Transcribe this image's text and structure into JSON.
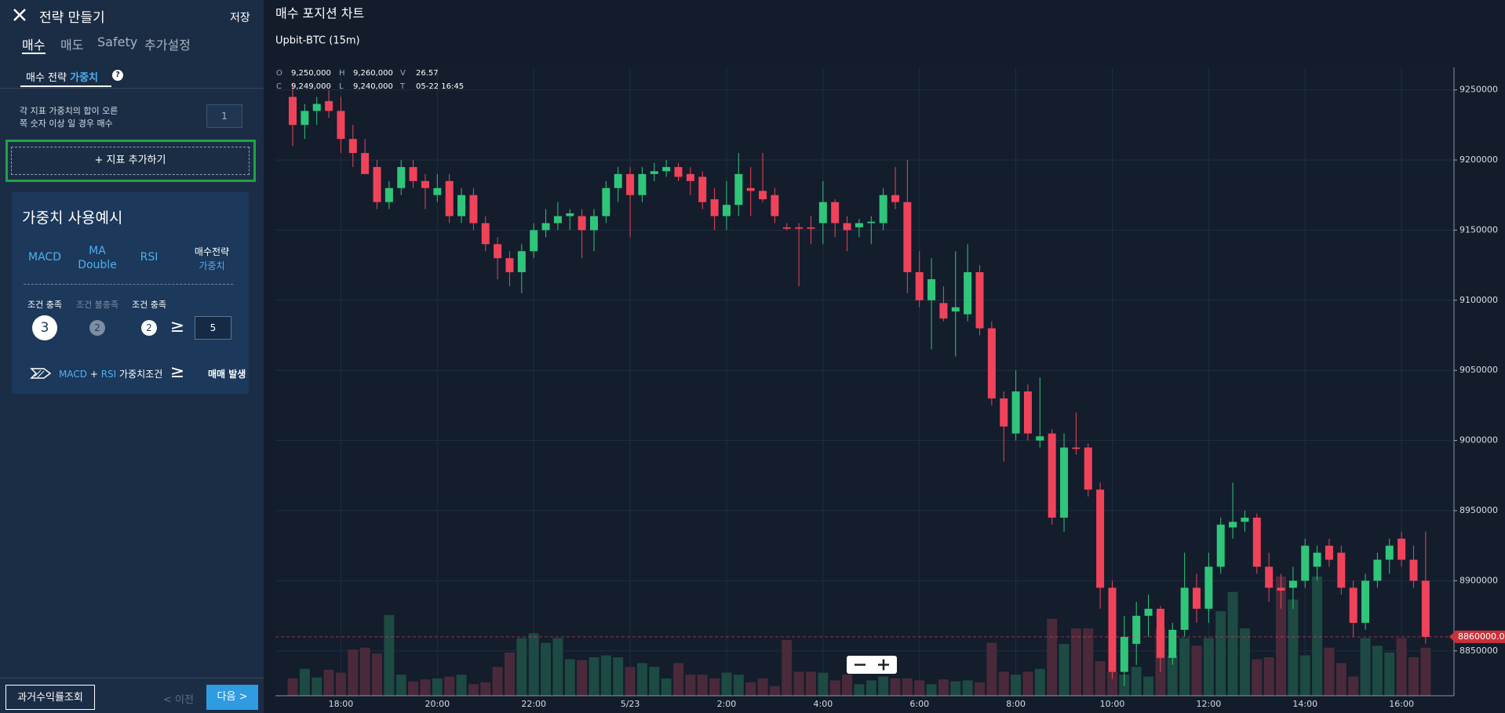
{
  "sidebar": {
    "title": "전략 만들기",
    "save": "저장",
    "tabs": [
      "매수",
      "매도",
      "Safety",
      "추가설정"
    ],
    "subtab": {
      "label": "매수 전략",
      "highlight": "가중치",
      "help": "?"
    },
    "description": [
      "각 지표 가중치의 합이 오른",
      "쪽 숫자 이상 일 경우 매수"
    ],
    "threshold": 1,
    "add_button": "+ 지표 추가하기",
    "example": {
      "title": "가중치 사용예시",
      "columns": [
        [
          "MACD"
        ],
        [
          "MA",
          "Double"
        ],
        [
          "RSI"
        ],
        [
          "매수전략",
          "가중치"
        ]
      ],
      "conditions": [
        {
          "label": "조건 충족",
          "weight": 3
        },
        {
          "label": "조건 불충족",
          "weight": 2
        },
        {
          "label": "조건 충족",
          "weight": 2
        }
      ],
      "operator": "≥",
      "target": 5,
      "result": [
        "MACD",
        "+",
        "RSI",
        "가중치조건",
        "≥",
        "매매 발생"
      ]
    },
    "footer": {
      "history": "과거수익률조회",
      "prev": "< 이전",
      "next": "다음 >"
    }
  },
  "chart_data": {
    "type": "candlestick",
    "title": "매수 포지션 차트",
    "subtitle": "Upbit-BTC (15m)",
    "legend": [
      {
        "key": "O",
        "value": "9,250,000"
      },
      {
        "key": "H",
        "value": "9,260,000"
      },
      {
        "key": "V",
        "value": "26.57"
      },
      {
        "key": "C",
        "value": "9,249,000"
      },
      {
        "key": "L",
        "value": "9,240,000"
      },
      {
        "key": "T",
        "value": "05-22 16:45"
      }
    ],
    "categories": [
      null,
      null,
      null,
      null,
      "18:00",
      null,
      null,
      null,
      null,
      null,
      null,
      null,
      "20:00",
      null,
      null,
      null,
      null,
      null,
      null,
      null,
      "22:00",
      null,
      null,
      null,
      null,
      null,
      null,
      null,
      "5/23",
      null,
      null,
      null,
      null,
      null,
      null,
      null,
      "2:00",
      null,
      null,
      null,
      null,
      null,
      null,
      null,
      "4:00",
      null,
      null,
      null,
      null,
      null,
      null,
      null,
      "6:00",
      null,
      null,
      null,
      null,
      null,
      null,
      null,
      "8:00",
      null,
      null,
      null,
      null,
      null,
      null,
      null,
      "10:00",
      null,
      null,
      null,
      null,
      null,
      null,
      null,
      "12:00",
      null,
      null,
      null,
      null,
      null,
      null,
      null,
      "14:00",
      null,
      null,
      null,
      null,
      null,
      null,
      null,
      "16:00",
      null,
      null
    ],
    "open": [
      9245000,
      9225000,
      9235000,
      9242000,
      9235000,
      9215000,
      9205000,
      9195000,
      9170000,
      9180000,
      9195000,
      9185000,
      9175000,
      9185000,
      9160000,
      9175000,
      9155000,
      9140000,
      9130000,
      9120000,
      9135000,
      9150000,
      9155000,
      9160000,
      9160000,
      9150000,
      9160000,
      9180000,
      9190000,
      9175000,
      9190000,
      9192000,
      9195000,
      9190000,
      9188000,
      9172000,
      9160000,
      9168000,
      9180000,
      9178000,
      9175000,
      9152000,
      9152000,
      9152000,
      9155000,
      9170000,
      9155000,
      9152000,
      9155000,
      9155000,
      9175000,
      9170000,
      9120000,
      9100000,
      9098000,
      9092000,
      9090000,
      9120000,
      9080000,
      9030000,
      9005000,
      9035000,
      9000000,
      9005000,
      8945000,
      8995000,
      8995000,
      8965000,
      8895000,
      8835000,
      8855000,
      8875000,
      8880000,
      8845000,
      8865000,
      8895000,
      8880000,
      8910000,
      8938000,
      8942000,
      8945000,
      8910000,
      8895000,
      8895000,
      8900000,
      8910000,
      8925000,
      8920000,
      8895000,
      8870000,
      8900000,
      8915000,
      8930000,
      8915000,
      8900000
    ],
    "high": [
      9255000,
      9240000,
      9245000,
      9250000,
      9245000,
      9225000,
      9215000,
      9200000,
      9185000,
      9200000,
      9200000,
      9190000,
      9190000,
      9190000,
      9180000,
      9180000,
      9160000,
      9145000,
      9135000,
      9140000,
      9155000,
      9165000,
      9170000,
      9165000,
      9165000,
      9165000,
      9185000,
      9195000,
      9195000,
      9195000,
      9198000,
      9200000,
      9198000,
      9195000,
      9192000,
      9180000,
      9185000,
      9205000,
      9195000,
      9205000,
      9180000,
      9155000,
      9155000,
      9160000,
      9185000,
      9172000,
      9160000,
      9158000,
      9160000,
      9180000,
      9195000,
      9200000,
      9135000,
      9130000,
      9110000,
      9135000,
      9140000,
      9125000,
      9085000,
      9035000,
      9050000,
      9040000,
      9045000,
      9008000,
      9005000,
      9020000,
      8998000,
      8970000,
      8900000,
      8875000,
      8885000,
      8890000,
      8882000,
      8870000,
      8920000,
      8905000,
      8920000,
      8945000,
      8970000,
      8950000,
      8948000,
      8920000,
      8905000,
      8910000,
      8930000,
      8925000,
      8930000,
      8925000,
      8900000,
      8905000,
      8920000,
      8930000,
      8935000,
      8925000,
      8935000
    ],
    "low": [
      9210000,
      9215000,
      9225000,
      9230000,
      9205000,
      9195000,
      9190000,
      9165000,
      9165000,
      9175000,
      9180000,
      9165000,
      9170000,
      9155000,
      9155000,
      9150000,
      9135000,
      9115000,
      9110000,
      9105000,
      9130000,
      9145000,
      9150000,
      9150000,
      9130000,
      9135000,
      9155000,
      9170000,
      9145000,
      9170000,
      9185000,
      9188000,
      9185000,
      9175000,
      9165000,
      9150000,
      9150000,
      9160000,
      9160000,
      9170000,
      9155000,
      9150000,
      9110000,
      9140000,
      9140000,
      9145000,
      9135000,
      9145000,
      9140000,
      9150000,
      9165000,
      9105000,
      9095000,
      9065000,
      9085000,
      9060000,
      9085000,
      9075000,
      9025000,
      8985000,
      9000000,
      9000000,
      8995000,
      8940000,
      8935000,
      8990000,
      8960000,
      8880000,
      8830000,
      8825000,
      8840000,
      8860000,
      8835000,
      8840000,
      8860000,
      8870000,
      8870000,
      8905000,
      8930000,
      8935000,
      8905000,
      8885000,
      8880000,
      8880000,
      8895000,
      8900000,
      8910000,
      8890000,
      8860000,
      8865000,
      8895000,
      8905000,
      8910000,
      8895000,
      8855000
    ],
    "close": [
      9225000,
      9235000,
      9240000,
      9235000,
      9215000,
      9205000,
      9190000,
      9170000,
      9180000,
      9195000,
      9185000,
      9180000,
      9180000,
      9160000,
      9175000,
      9155000,
      9140000,
      9130000,
      9120000,
      9135000,
      9150000,
      9155000,
      9160000,
      9162000,
      9150000,
      9160000,
      9180000,
      9190000,
      9175000,
      9190000,
      9192000,
      9195000,
      9188000,
      9185000,
      9170000,
      9160000,
      9168000,
      9190000,
      9178000,
      9172000,
      9160000,
      9151000,
      9151000,
      9151000,
      9170000,
      9155000,
      9150000,
      9155000,
      9156000,
      9175000,
      9170000,
      9120000,
      9100000,
      9115000,
      9087000,
      9095000,
      9120000,
      9080000,
      9030000,
      9010000,
      9035000,
      9005000,
      9003000,
      8945000,
      8995000,
      8994000,
      8965000,
      8895000,
      8835000,
      8860000,
      8875000,
      8880000,
      8845000,
      8865000,
      8895000,
      8880000,
      8910000,
      8940000,
      8942000,
      8945000,
      8910000,
      8895000,
      8893000,
      8900000,
      8925000,
      8920000,
      8915000,
      8895000,
      8870000,
      8900000,
      8915000,
      8925000,
      8915000,
      8900000,
      8860000
    ],
    "volume": [
      18,
      28,
      19,
      27,
      24,
      48,
      50,
      44,
      84,
      22,
      15,
      17,
      18,
      20,
      22,
      12,
      14,
      30,
      45,
      60,
      65,
      55,
      60,
      38,
      37,
      40,
      42,
      40,
      30,
      34,
      30,
      18,
      34,
      22,
      22,
      18,
      24,
      22,
      14,
      18,
      10,
      58,
      25,
      25,
      24,
      16,
      22,
      12,
      16,
      20,
      18,
      18,
      16,
      12,
      17,
      15,
      16,
      14,
      55,
      25,
      22,
      25,
      28,
      80,
      54,
      70,
      70,
      36,
      25,
      22,
      30,
      20,
      70,
      42,
      60,
      52,
      60,
      88,
      108,
      70,
      38,
      40,
      124,
      100,
      42,
      124,
      50,
      34,
      20,
      60,
      52,
      45,
      60,
      40,
      50
    ],
    "up_color": "#2fc67a",
    "down_color": "#f0435a",
    "volume_up_color": "#1d4a42",
    "volume_down_color": "#4a2a3a",
    "last_price": {
      "value": 8860000,
      "label": "8860000.0"
    },
    "ylim": [
      8818000,
      9266000
    ],
    "yticks": [
      8850000,
      8900000,
      8950000,
      9000000,
      9050000,
      9100000,
      9150000,
      9200000,
      9250000
    ],
    "grid": true
  }
}
